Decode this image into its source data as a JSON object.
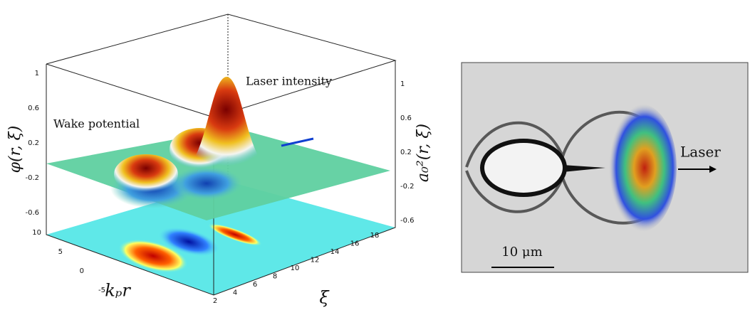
{
  "left_panel": {
    "annotations": {
      "laser": "Laser intensity",
      "wake": "Wake potential"
    },
    "axes": {
      "z_left_label": "φ(r, ξ)",
      "z_right_label": "a₀²(r, ξ)",
      "y_label": "kₚr",
      "x_label": "ξ",
      "z_left_ticks": [
        1,
        0.6,
        0.2,
        -0.2,
        -0.6
      ],
      "z_right_ticks": [
        1,
        0.6,
        0.2,
        -0.2,
        -0.6
      ],
      "y_ticks": [
        10,
        5,
        0,
        -5
      ],
      "x_ticks": [
        2,
        4,
        6,
        8,
        10,
        12,
        14,
        16,
        18
      ]
    }
  },
  "right_panel": {
    "annotation": "Laser",
    "scale_bar": "10 μm"
  }
}
